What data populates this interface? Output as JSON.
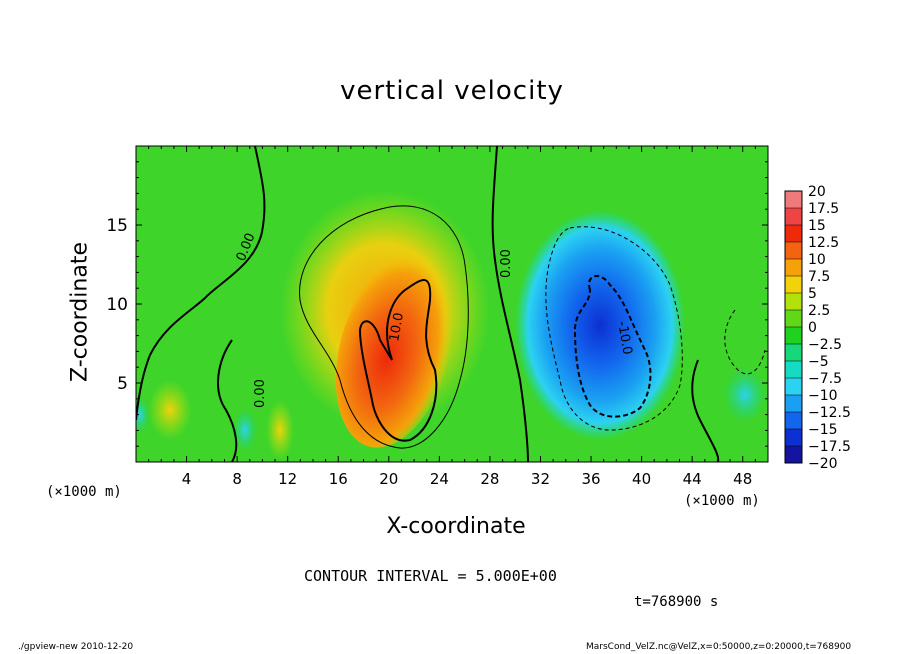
{
  "chart_data": {
    "type": "heatmap",
    "title": "vertical velocity",
    "xlabel": "X-coordinate",
    "ylabel": "Z-coordinate",
    "x_unit_label": "(×1000 m)",
    "xlim": [
      0,
      50
    ],
    "ylim": [
      0,
      20
    ],
    "x_ticks": [
      "4",
      "8",
      "12",
      "16",
      "20",
      "24",
      "28",
      "32",
      "36",
      "40",
      "44",
      "48"
    ],
    "y_ticks": [
      "5",
      "10",
      "15"
    ],
    "colorbar": {
      "labels": [
        "20",
        "17.5",
        "15",
        "12.5",
        "10",
        "7.5",
        "5",
        "2.5",
        "0",
        "−2.5",
        "−5",
        "−7.5",
        "−10",
        "−12.5",
        "−15",
        "−17.5",
        "−20"
      ],
      "colors": [
        "#ef7a7a",
        "#ee4444",
        "#ee2a0a",
        "#f26410",
        "#f5a20a",
        "#f2d20a",
        "#b2e20a",
        "#60d818",
        "#1ed21e",
        "#16d87a",
        "#14dcc2",
        "#2cd2f2",
        "#1aa0f2",
        "#1266ee",
        "#0c30d2",
        "#1414a0",
        "#6622aa"
      ]
    },
    "contour_interval": 5.0,
    "contour_labels": [
      "0.00",
      "0.00",
      "0.00",
      "10.0",
      "-10.0"
    ],
    "features": [
      {
        "kind": "updraft",
        "x": 21,
        "z": 7,
        "peak": 15
      },
      {
        "kind": "downdraft",
        "x": 37,
        "z": 7,
        "peak": -13
      }
    ]
  },
  "annotations": {
    "contour_note": "CONTOUR INTERVAL = 5.000E+00",
    "time_note": "t=768900 s",
    "footer_left": "./gpview-new   2010-12-20",
    "footer_right": "MarsCond_VelZ.nc@VelZ,x=0:50000,z=0:20000,t=768900"
  }
}
